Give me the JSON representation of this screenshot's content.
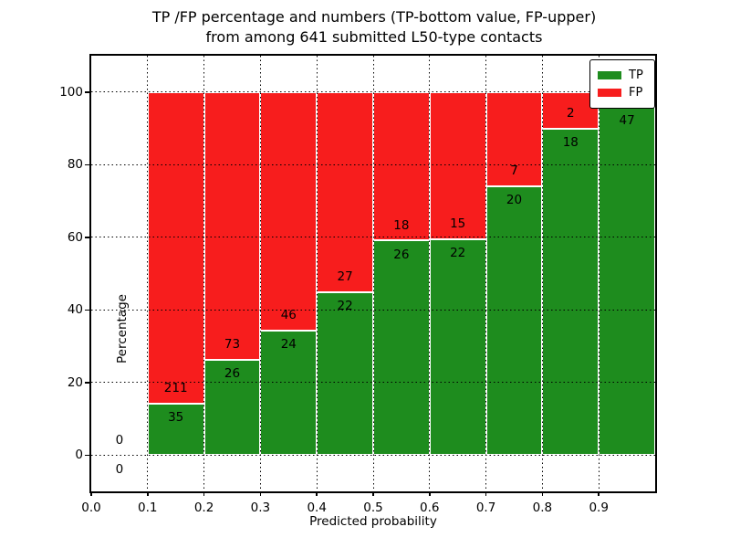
{
  "title": {
    "line1": "TP /FP percentage and numbers (TP-bottom value, FP-upper)",
    "line2": "from among 641 submitted L50-type contacts"
  },
  "axes": {
    "xlabel": "Predicted probability",
    "ylabel": "Percentage",
    "x_tick_labels": [
      "0.0",
      "0.1",
      "0.2",
      "0.3",
      "0.4",
      "0.5",
      "0.6",
      "0.7",
      "0.8",
      "0.9"
    ],
    "x_tick_values": [
      0.0,
      0.1,
      0.2,
      0.3,
      0.4,
      0.5,
      0.6,
      0.7,
      0.8,
      0.9
    ],
    "y_tick_labels": [
      "0",
      "20",
      "40",
      "60",
      "80",
      "100"
    ],
    "y_tick_values": [
      0,
      20,
      40,
      60,
      80,
      100
    ],
    "xlim": [
      0.0,
      1.0
    ],
    "ylim": [
      -10,
      110
    ],
    "grid": "dotted"
  },
  "legend": {
    "position": "upper-right",
    "items": [
      {
        "label": "TP",
        "color": "#1e8c1e"
      },
      {
        "label": "FP",
        "color": "#f71d1d"
      }
    ]
  },
  "chart_data": {
    "type": "bar",
    "stacked": true,
    "normalized_to": 100,
    "title": "TP /FP percentage and numbers (TP-bottom value, FP-upper) from among 641 submitted L50-type contacts",
    "xlabel": "Predicted probability",
    "ylabel": "Percentage",
    "total_contacts": 641,
    "colors": {
      "tp": "#1e8c1e",
      "fp": "#f71d1d"
    },
    "bins": [
      {
        "x0": 0.0,
        "x1": 0.1,
        "tp": 0,
        "fp": 0
      },
      {
        "x0": 0.1,
        "x1": 0.2,
        "tp": 35,
        "fp": 211
      },
      {
        "x0": 0.2,
        "x1": 0.3,
        "tp": 26,
        "fp": 73
      },
      {
        "x0": 0.3,
        "x1": 0.4,
        "tp": 24,
        "fp": 46
      },
      {
        "x0": 0.4,
        "x1": 0.5,
        "tp": 22,
        "fp": 27
      },
      {
        "x0": 0.5,
        "x1": 0.6,
        "tp": 26,
        "fp": 18
      },
      {
        "x0": 0.6,
        "x1": 0.7,
        "tp": 22,
        "fp": 15
      },
      {
        "x0": 0.7,
        "x1": 0.8,
        "tp": 20,
        "fp": 7
      },
      {
        "x0": 0.8,
        "x1": 0.9,
        "tp": 18,
        "fp": 2
      },
      {
        "x0": 0.9,
        "x1": 1.0,
        "tp": 47,
        "fp": 2
      }
    ]
  }
}
